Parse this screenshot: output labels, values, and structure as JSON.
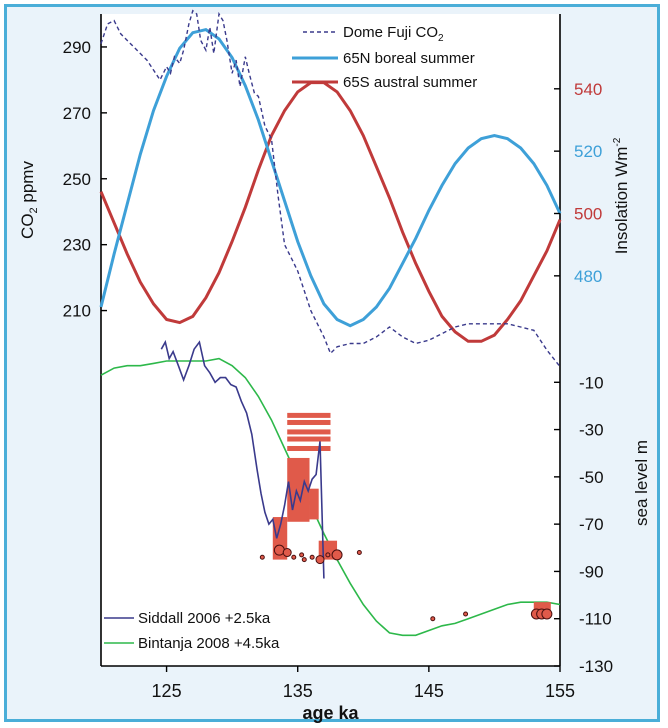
{
  "chart_data": {
    "type": "line",
    "xlabel": "age ka",
    "xlim": [
      120,
      155
    ],
    "xticks": [
      125,
      135,
      145,
      155
    ],
    "colors": {
      "co2": "#3a3a8c",
      "boreal": "#3ea0d8",
      "austral": "#c03a3a",
      "siddall": "#3a3a8c",
      "bintanja": "#2db84a",
      "obs": "#e05a4a",
      "frame": "#4aaed8",
      "bg": "#eaf3fa"
    },
    "co2_axis": {
      "label": "CO",
      "label_sub": "2",
      "label_unit": "ppmv",
      "ylim": [
        195,
        300
      ],
      "ticks": [
        210,
        230,
        250,
        270,
        290
      ]
    },
    "insolation_axis": {
      "label": "Insolation Wm",
      "label_sup": "-2",
      "ylim": [
        453,
        564
      ],
      "ticks": [
        480,
        500,
        520,
        540
      ],
      "tick_colors": [
        "#3ea0d8",
        "#c03a3a",
        "#3ea0d8",
        "#c03a3a"
      ]
    },
    "sea_axis": {
      "label": "sea level m",
      "ylim": [
        -130,
        10
      ],
      "ticks": [
        -10,
        -30,
        -50,
        -70,
        -90,
        -110,
        -130
      ]
    },
    "legend_top": [
      {
        "label": "Dome Fuji CO",
        "sub": "2",
        "style": "dashed",
        "color": "#3a3a8c"
      },
      {
        "label": "65N boreal summer",
        "style": "thick",
        "color": "#3ea0d8"
      },
      {
        "label": "65S austral summer",
        "style": "thick",
        "color": "#c03a3a"
      }
    ],
    "legend_bottom": [
      {
        "label": "Siddall 2006 +2.5ka",
        "color": "#3a3a8c"
      },
      {
        "label": "Bintanja 2008 +4.5ka",
        "color": "#2db84a"
      }
    ],
    "series": {
      "co2": {
        "x": [
          120,
          120.5,
          121,
          121.5,
          122,
          122.5,
          123,
          123.5,
          124,
          124.5,
          125,
          125.3,
          125.6,
          126,
          126.3,
          126.7,
          127,
          127.3,
          127.6,
          128,
          128.3,
          128.6,
          129,
          129.3,
          129.6,
          130,
          130.3,
          130.6,
          131,
          131.3,
          131.7,
          132,
          132.5,
          133,
          133.5,
          134,
          134.5,
          135,
          135.5,
          136,
          136.5,
          137,
          137.5,
          138,
          139,
          140,
          141,
          142,
          143,
          144,
          145,
          146,
          147,
          148,
          149,
          150,
          151,
          152,
          153,
          154,
          155
        ],
        "y": [
          291,
          297,
          298,
          294,
          292,
          290,
          288,
          286,
          283,
          280,
          284,
          282,
          287,
          285,
          289,
          297,
          301,
          300,
          292,
          289,
          296,
          288,
          300,
          298,
          292,
          282,
          286,
          278,
          287,
          282,
          276,
          275,
          266,
          262,
          245,
          230,
          226,
          222,
          216,
          210,
          206,
          202,
          197,
          199,
          200,
          200,
          202,
          205,
          202,
          200,
          201,
          203,
          205,
          206,
          206,
          206,
          206,
          205,
          204,
          198,
          193
        ]
      },
      "boreal": {
        "x": [
          120,
          121,
          122,
          123,
          124,
          125,
          126,
          127,
          128,
          129,
          130,
          131,
          132,
          133,
          134,
          135,
          136,
          137,
          138,
          139,
          140,
          141,
          142,
          143,
          144,
          145,
          146,
          147,
          148,
          149,
          150,
          151,
          152,
          153,
          154,
          155
        ],
        "y": [
          470,
          487,
          503,
          519,
          533,
          544,
          553,
          558,
          559,
          556,
          550,
          541,
          530,
          517,
          504,
          491,
          480,
          471,
          466,
          464,
          466,
          470,
          476,
          484,
          492,
          501,
          509,
          516,
          521,
          524,
          525,
          524,
          521,
          516,
          509,
          500
        ]
      },
      "austral": {
        "x": [
          120,
          121,
          122,
          123,
          124,
          125,
          126,
          127,
          128,
          129,
          130,
          131,
          132,
          133,
          134,
          135,
          136,
          137,
          138,
          139,
          140,
          141,
          142,
          143,
          144,
          145,
          146,
          147,
          148,
          149,
          150,
          151,
          152,
          153,
          154,
          155
        ],
        "y": [
          507,
          497,
          487,
          478,
          471,
          466,
          465,
          467,
          473,
          481,
          491,
          502,
          514,
          525,
          533,
          539,
          542,
          542,
          539,
          533,
          525,
          515,
          505,
          494,
          484,
          475,
          467,
          462,
          459,
          459,
          461,
          466,
          472,
          480,
          488,
          498
        ]
      },
      "siddall": {
        "x": [
          124.6,
          124.9,
          125.2,
          125.5,
          125.9,
          126.3,
          126.7,
          127.1,
          127.5,
          127.9,
          128.3,
          128.7,
          129.1,
          129.5,
          129.9,
          130.3,
          130.7,
          131.1,
          131.5,
          131.9,
          132.2,
          132.5,
          132.8,
          133.1,
          133.4,
          133.7,
          134,
          134.3,
          134.6,
          134.9,
          135.2,
          135.5,
          135.8,
          136.1,
          136.4,
          136.7,
          137
        ],
        "y": [
          4,
          7,
          0,
          3,
          -3,
          -9,
          -3,
          4,
          7,
          -3,
          -6,
          -10,
          -8,
          -8,
          -11,
          -12,
          -18,
          -23,
          -32,
          -47,
          -57,
          -65,
          -70,
          -68,
          -76,
          -70,
          -62,
          -52,
          -64,
          -56,
          -60,
          -52,
          -56,
          -51,
          -49,
          -35,
          -93
        ]
      },
      "bintanja": {
        "x": [
          120,
          121,
          122,
          123,
          124,
          125,
          126,
          127,
          128,
          129,
          130,
          131,
          132,
          133,
          134,
          135,
          136,
          137,
          138,
          139,
          140,
          141,
          142,
          143,
          144,
          145,
          146,
          147,
          148,
          149,
          150,
          151,
          152,
          153,
          154,
          155
        ],
        "y": [
          -7,
          -4,
          -3,
          -3,
          -2,
          -1,
          -1,
          -1,
          -1,
          0,
          -3,
          -8,
          -16,
          -26,
          -38,
          -50,
          -62,
          -74,
          -85,
          -95,
          -104,
          -111,
          -116,
          -117,
          -117,
          -115,
          -113,
          -112,
          -110,
          -108,
          -106,
          -104,
          -103,
          -103,
          -103,
          -104
        ]
      }
    },
    "sea_bars": [
      {
        "x0": 133.1,
        "x1": 134.2,
        "y0": -67,
        "y1": -85
      },
      {
        "x0": 134.2,
        "x1": 135.9,
        "y0": -42,
        "y1": -69
      },
      {
        "x0": 135.9,
        "x1": 136.6,
        "y0": -55,
        "y1": -68
      },
      {
        "x0": 136.6,
        "x1": 138.0,
        "y0": -77,
        "y1": -85
      },
      {
        "x0": 153.0,
        "x1": 154.3,
        "y0": -103,
        "y1": -108
      }
    ],
    "sea_dashes": {
      "x0": 134.2,
      "x1": 137.5,
      "y": [
        -24,
        -27,
        -31,
        -34,
        -38
      ]
    },
    "sea_points": [
      {
        "x": 132.3,
        "y": -84,
        "r": 2
      },
      {
        "x": 133.6,
        "y": -81,
        "r": 5
      },
      {
        "x": 134.2,
        "y": -82,
        "r": 4
      },
      {
        "x": 134.7,
        "y": -84,
        "r": 2
      },
      {
        "x": 135.3,
        "y": -83,
        "r": 2
      },
      {
        "x": 135.5,
        "y": -85,
        "r": 2
      },
      {
        "x": 136.1,
        "y": -84,
        "r": 2
      },
      {
        "x": 136.7,
        "y": -85,
        "r": 4
      },
      {
        "x": 137.3,
        "y": -83,
        "r": 2
      },
      {
        "x": 138.0,
        "y": -83,
        "r": 5
      },
      {
        "x": 139.7,
        "y": -82,
        "r": 2
      },
      {
        "x": 145.3,
        "y": -110,
        "r": 2
      },
      {
        "x": 147.8,
        "y": -108,
        "r": 2
      },
      {
        "x": 153.2,
        "y": -108,
        "r": 5
      },
      {
        "x": 153.6,
        "y": -108,
        "r": 5
      },
      {
        "x": 154.0,
        "y": -108,
        "r": 5
      }
    ]
  }
}
